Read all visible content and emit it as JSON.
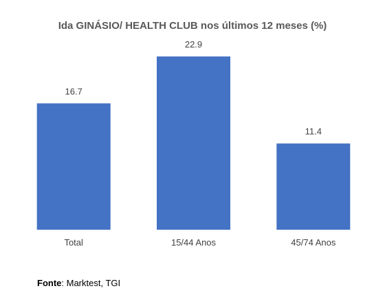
{
  "chart_data": {
    "type": "bar",
    "title": "Ida GINÁSIO/ HEALTH CLUB nos últimos 12 meses (%)",
    "categories": [
      "Total",
      "15/44 Anos",
      "45/74 Anos"
    ],
    "values": [
      16.7,
      22.9,
      11.4
    ],
    "value_labels": [
      "16.7",
      "22.9",
      "11.4"
    ],
    "xlabel": "",
    "ylabel": "",
    "ylim": [
      0,
      25
    ],
    "grid": false,
    "legend": "none",
    "bar_color": "#4472C4"
  },
  "source": {
    "label": "Fonte",
    "text": ": Marktest, TGI"
  }
}
